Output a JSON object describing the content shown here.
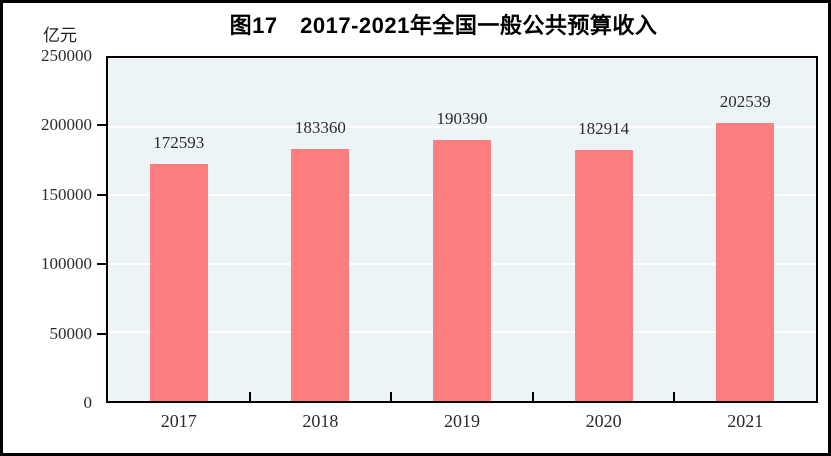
{
  "header": {
    "figure_title": "图17　2017-2021年全国一般公共预算收入",
    "unit_label": "亿元"
  },
  "chart_data": {
    "type": "bar",
    "title": "图17　2017-2021年全国一般公共预算收入",
    "ylabel": "亿元",
    "xlabel": "",
    "categories": [
      "2017",
      "2018",
      "2019",
      "2020",
      "2021"
    ],
    "values": [
      172593,
      183360,
      190390,
      182914,
      202539
    ],
    "value_labels": [
      "172593",
      "183360",
      "190390",
      "182914",
      "202539"
    ],
    "ylim": [
      0,
      250000
    ],
    "ytick_interval": 50000,
    "ytick_labels": [
      "250000",
      "200000",
      "150000",
      "100000",
      "50000",
      "0"
    ],
    "grid": true,
    "legend_position": "none",
    "colors": {
      "bar": "#FC7E7E",
      "plot_background": "#ECF4F7",
      "gridline": "#FFFFFF",
      "axis": "#000000",
      "text": "#2B2B2B"
    }
  }
}
